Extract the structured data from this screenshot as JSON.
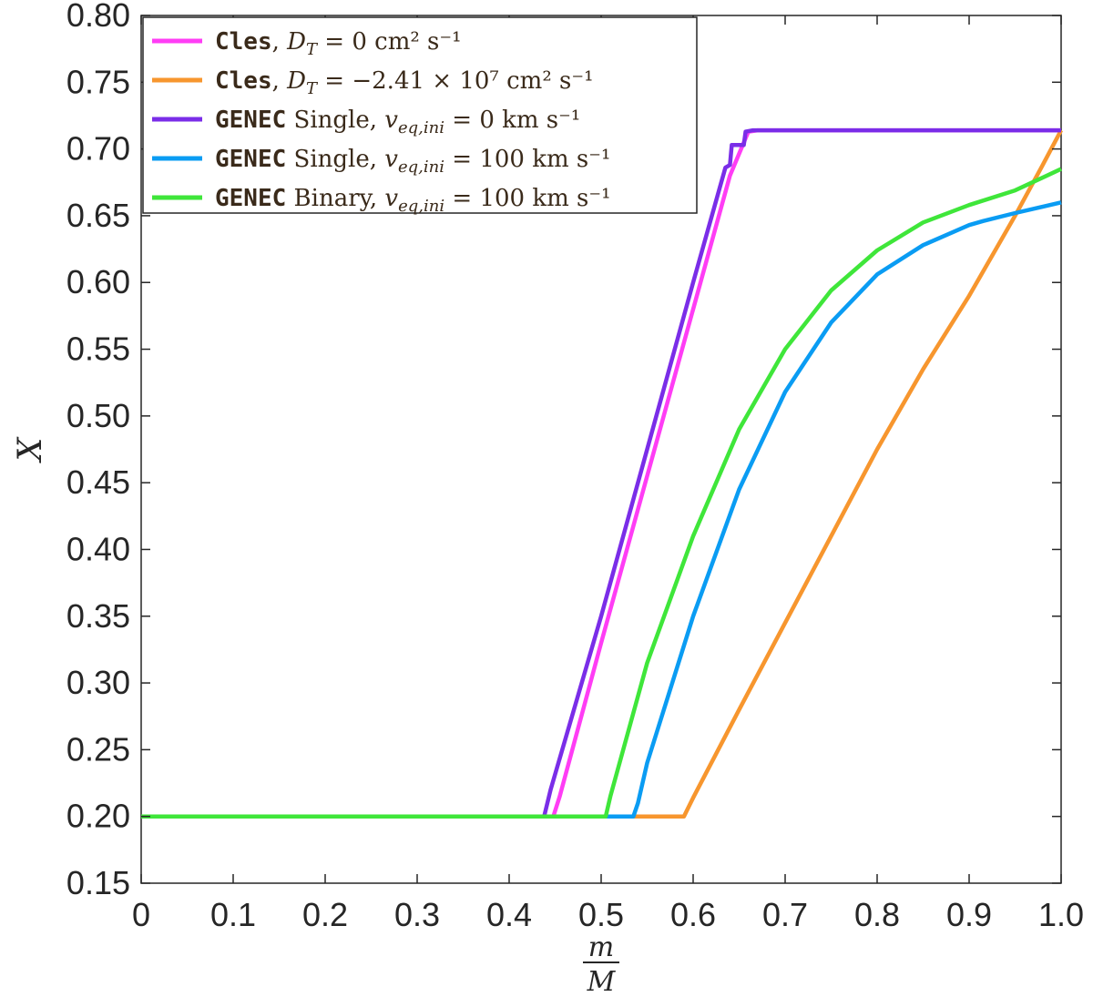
{
  "chart_data": {
    "type": "line",
    "xlabel_num": "m",
    "xlabel_den": "M",
    "ylabel": "X",
    "xlim": [
      0,
      1
    ],
    "ylim": [
      0.15,
      0.8
    ],
    "xticks": [
      "0",
      "0.1",
      "0.2",
      "0.3",
      "0.4",
      "0.5",
      "0.6",
      "0.7",
      "0.8",
      "0.9",
      "1.0"
    ],
    "yticks": [
      "0.15",
      "0.20",
      "0.25",
      "0.30",
      "0.35",
      "0.40",
      "0.45",
      "0.50",
      "0.55",
      "0.60",
      "0.65",
      "0.70",
      "0.75",
      "0.80"
    ],
    "grid": false,
    "legend_position": "top-left",
    "series": [
      {
        "name": "Cles, D_T = 0 cm^2 s^-1",
        "color": "#ff3df5",
        "points": [
          [
            0,
            0.2
          ],
          [
            0.448,
            0.2
          ],
          [
            0.455,
            0.215
          ],
          [
            0.5,
            0.33
          ],
          [
            0.55,
            0.455
          ],
          [
            0.6,
            0.58
          ],
          [
            0.64,
            0.68
          ],
          [
            0.66,
            0.713
          ],
          [
            0.67,
            0.714
          ],
          [
            1.0,
            0.714
          ]
        ]
      },
      {
        "name": "Cles, D_T = −2.41 × 10^7 cm^2 s^-1",
        "color": "#f7962e",
        "points": [
          [
            0,
            0.2
          ],
          [
            0.59,
            0.2
          ],
          [
            0.6,
            0.214
          ],
          [
            0.65,
            0.28
          ],
          [
            0.7,
            0.345
          ],
          [
            0.75,
            0.41
          ],
          [
            0.8,
            0.475
          ],
          [
            0.85,
            0.535
          ],
          [
            0.9,
            0.59
          ],
          [
            0.95,
            0.65
          ],
          [
            0.98,
            0.688
          ],
          [
            1.0,
            0.714
          ]
        ]
      },
      {
        "name": "GENEC Single, v_eq,ini = 0 km s^-1",
        "color": "#7a2de8",
        "points": [
          [
            0,
            0.2
          ],
          [
            0.438,
            0.2
          ],
          [
            0.445,
            0.22
          ],
          [
            0.5,
            0.35
          ],
          [
            0.55,
            0.475
          ],
          [
            0.6,
            0.6
          ],
          [
            0.635,
            0.686
          ],
          [
            0.64,
            0.688
          ],
          [
            0.642,
            0.703
          ],
          [
            0.655,
            0.703
          ],
          [
            0.657,
            0.713
          ],
          [
            0.665,
            0.714
          ],
          [
            1.0,
            0.714
          ]
        ]
      },
      {
        "name": "GENEC Single, v_eq,ini = 100 km s^-1",
        "color": "#0a9cf3",
        "points": [
          [
            0,
            0.2
          ],
          [
            0.535,
            0.2
          ],
          [
            0.54,
            0.21
          ],
          [
            0.55,
            0.24
          ],
          [
            0.6,
            0.35
          ],
          [
            0.65,
            0.445
          ],
          [
            0.7,
            0.518
          ],
          [
            0.75,
            0.57
          ],
          [
            0.8,
            0.606
          ],
          [
            0.85,
            0.628
          ],
          [
            0.9,
            0.643
          ],
          [
            0.915,
            0.646
          ],
          [
            0.95,
            0.652
          ],
          [
            1.0,
            0.66
          ]
        ]
      },
      {
        "name": "GENEC Binary, v_eq,ini = 100 km s^-1",
        "color": "#3fe63a",
        "points": [
          [
            0,
            0.2
          ],
          [
            0.505,
            0.2
          ],
          [
            0.51,
            0.215
          ],
          [
            0.55,
            0.315
          ],
          [
            0.6,
            0.41
          ],
          [
            0.65,
            0.49
          ],
          [
            0.7,
            0.55
          ],
          [
            0.75,
            0.594
          ],
          [
            0.8,
            0.624
          ],
          [
            0.85,
            0.645
          ],
          [
            0.9,
            0.658
          ],
          [
            0.95,
            0.669
          ],
          [
            1.0,
            0.685
          ]
        ]
      }
    ]
  },
  "legend": [
    {
      "prog": "Cles",
      "sep": ", ",
      "label": "D",
      "sub": "T",
      "rest": " = 0 cm² s⁻¹"
    },
    {
      "prog": "Cles",
      "sep": ", ",
      "label": "D",
      "sub": "T",
      "rest": " = −2.41 × 10⁷ cm² s⁻¹"
    },
    {
      "prog": "GENEC",
      "sep": " Single, ",
      "label": "v",
      "sub": "eq,ini",
      "rest": "  = 0 km s⁻¹"
    },
    {
      "prog": "GENEC",
      "sep": " Single, ",
      "label": "v",
      "sub": "eq,ini",
      "rest": "  = 100 km s⁻¹"
    },
    {
      "prog": "GENEC",
      "sep": " Binary, ",
      "label": "v",
      "sub": "eq,ini",
      "rest": "  = 100 km s⁻¹"
    }
  ]
}
